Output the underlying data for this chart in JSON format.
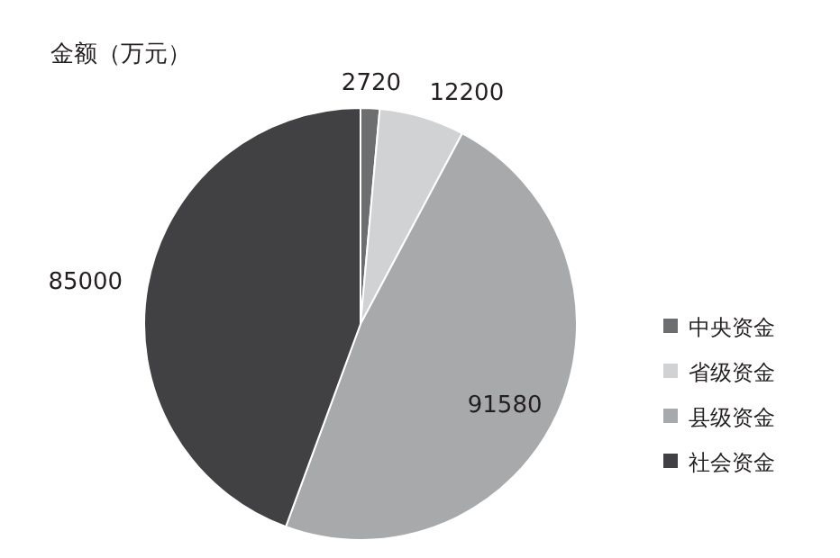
{
  "chart_data": {
    "type": "pie",
    "title": "金额（万元）",
    "categories": [
      "中央资金",
      "省级资金",
      "县级资金",
      "社会资金"
    ],
    "values": [
      2720,
      12200,
      91580,
      85000
    ],
    "colors": [
      "#6d6e70",
      "#d1d2d3",
      "#a7a9ab",
      "#414042"
    ],
    "data_labels": true,
    "legend": "bottom right"
  }
}
